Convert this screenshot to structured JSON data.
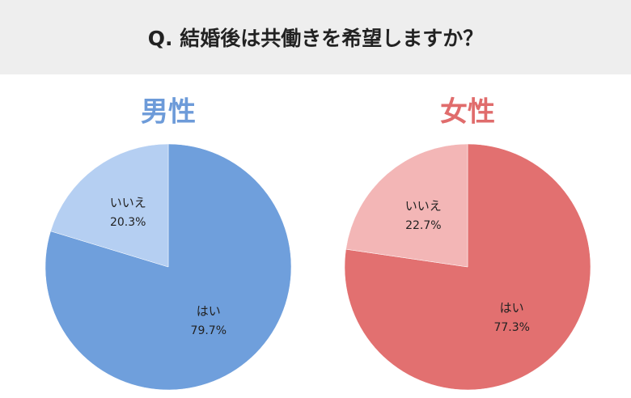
{
  "header": {
    "title": "Q. 結婚後は共働きを希望しますか？"
  },
  "chart_data": [
    {
      "type": "pie",
      "title": "男性",
      "title_color": "#6d9bd9",
      "categories": [
        "はい",
        "いいえ"
      ],
      "values": [
        79.7,
        20.3
      ],
      "value_labels": [
        "79.7%",
        "20.3%"
      ],
      "colors": [
        "#6f9fdc",
        "#b5cff2"
      ]
    },
    {
      "type": "pie",
      "title": "女性",
      "title_color": "#e06c6c",
      "categories": [
        "はい",
        "いいえ"
      ],
      "values": [
        77.3,
        22.7
      ],
      "value_labels": [
        "77.3%",
        "22.7%"
      ],
      "colors": [
        "#e27070",
        "#f3b6b6"
      ]
    }
  ]
}
